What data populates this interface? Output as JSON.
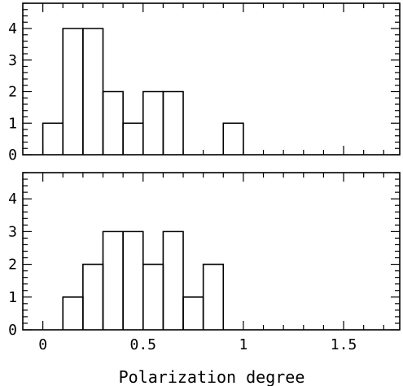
{
  "chart_data": [
    {
      "type": "bar",
      "title": "",
      "xlabel": "",
      "ylabel": "",
      "bin_edges": [
        0,
        0.1,
        0.2,
        0.3,
        0.4,
        0.5,
        0.6,
        0.7,
        0.8,
        0.9,
        1.0
      ],
      "values": [
        1,
        4,
        4,
        2,
        1,
        2,
        2,
        0,
        0,
        1
      ],
      "xlim": [
        -0.1,
        1.78
      ],
      "ylim": [
        0,
        4.8
      ],
      "yticks": [
        "0",
        "1",
        "2",
        "3",
        "4"
      ],
      "grid": false
    },
    {
      "type": "bar",
      "title": "",
      "xlabel": "Polarization degree",
      "ylabel": "",
      "bin_edges": [
        0,
        0.1,
        0.2,
        0.3,
        0.4,
        0.5,
        0.6,
        0.7,
        0.8,
        0.9
      ],
      "values": [
        0,
        1,
        2,
        3,
        3,
        2,
        3,
        1,
        2
      ],
      "xlim": [
        -0.1,
        1.78
      ],
      "ylim": [
        0,
        4.8
      ],
      "yticks": [
        "0",
        "1",
        "2",
        "3",
        "4"
      ],
      "xticks": [
        "0",
        "0.5",
        "1",
        "1.5"
      ],
      "grid": false
    }
  ]
}
